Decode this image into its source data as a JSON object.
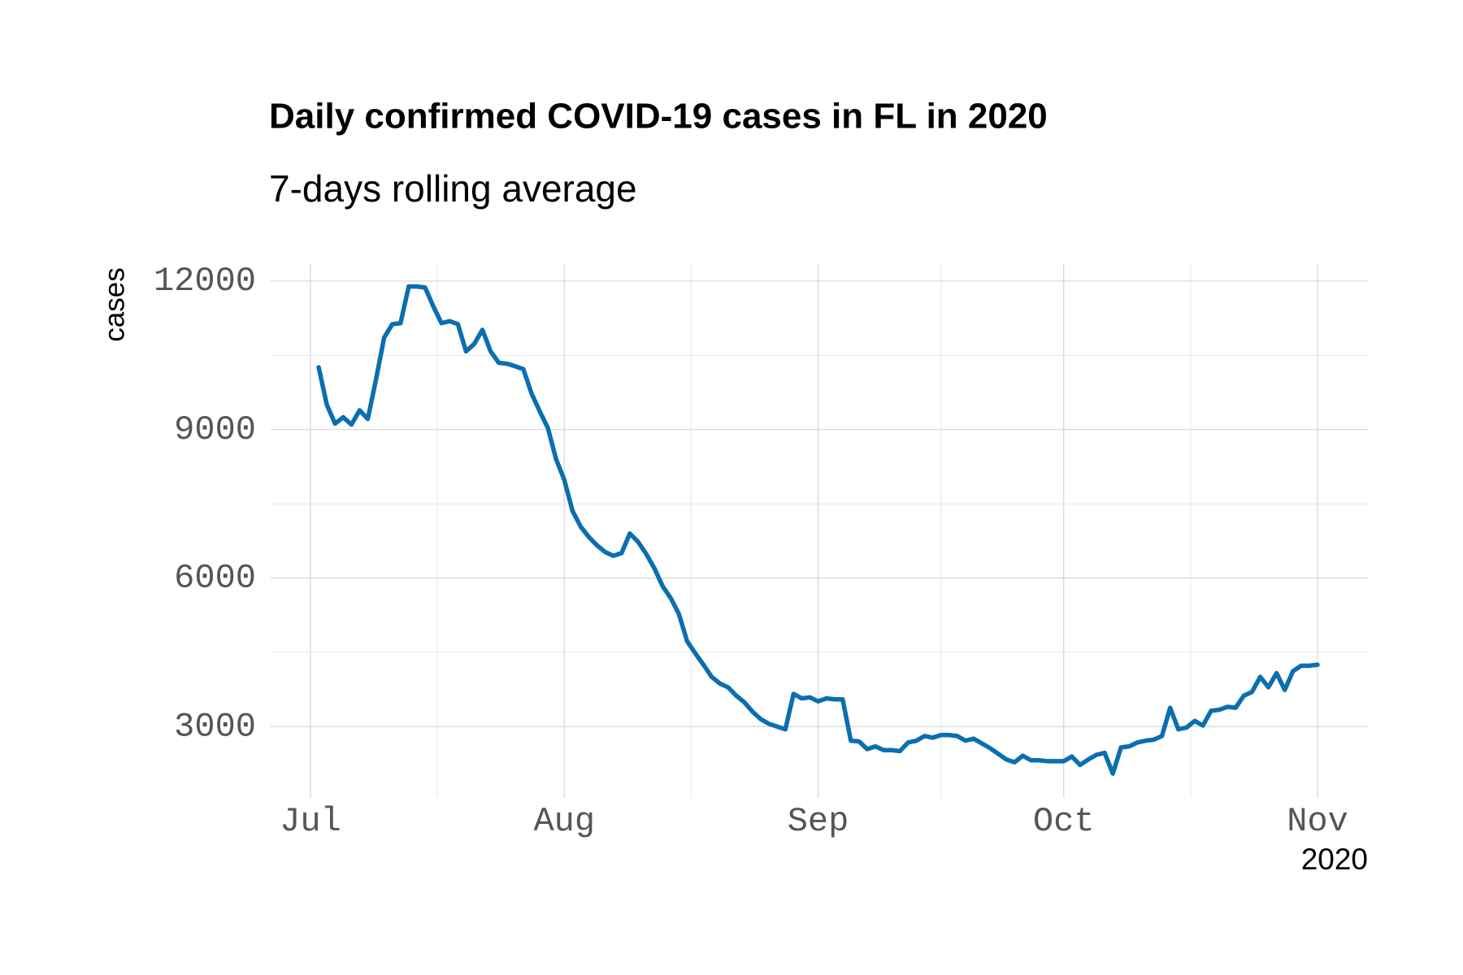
{
  "chart_data": {
    "type": "line",
    "title": "Daily confirmed COVID-19 cases in FL in 2020",
    "subtitle": "7-days rolling average",
    "y_label": "cases",
    "x_label": "2020",
    "categories": [
      "Jul",
      null,
      null,
      null,
      null,
      null,
      null,
      null,
      null,
      null,
      null,
      null,
      null,
      null,
      null,
      null,
      null,
      null,
      null,
      null,
      null,
      null,
      null,
      null,
      null,
      null,
      null,
      null,
      null,
      null,
      null,
      "Aug",
      null,
      null,
      null,
      null,
      null,
      null,
      null,
      null,
      null,
      null,
      null,
      null,
      null,
      null,
      null,
      null,
      null,
      null,
      null,
      null,
      null,
      null,
      null,
      null,
      null,
      null,
      null,
      null,
      null,
      null,
      "Sep",
      null,
      null,
      null,
      null,
      null,
      null,
      null,
      null,
      null,
      null,
      null,
      null,
      null,
      null,
      null,
      null,
      null,
      null,
      null,
      null,
      null,
      null,
      null,
      null,
      null,
      null,
      null,
      null,
      null,
      "Oct",
      null,
      null,
      null,
      null,
      null,
      null,
      null,
      null,
      null,
      null,
      null,
      null,
      null,
      null,
      null,
      null,
      null,
      null,
      null,
      null,
      null,
      null,
      null,
      null,
      null,
      null,
      null,
      null,
      null,
      null,
      "Nov"
    ],
    "values": [
      null,
      10258,
      9500,
      9120,
      9250,
      9100,
      9390,
      9215,
      10010,
      10860,
      11130,
      11150,
      11890,
      11890,
      11870,
      11490,
      11150,
      11190,
      11130,
      10580,
      10730,
      11015,
      10580,
      10350,
      10330,
      10280,
      10220,
      9730,
      9370,
      9030,
      8400,
      7985,
      7360,
      7040,
      6830,
      6660,
      6525,
      6450,
      6505,
      6900,
      6735,
      6490,
      6200,
      5840,
      5595,
      5275,
      4725,
      4480,
      4250,
      4005,
      3870,
      3795,
      3625,
      3490,
      3300,
      3150,
      3055,
      3000,
      2945,
      3660,
      3570,
      3590,
      3510,
      3570,
      3550,
      3550,
      2715,
      2700,
      2545,
      2600,
      2525,
      2525,
      2505,
      2680,
      2715,
      2810,
      2775,
      2830,
      2830,
      2810,
      2715,
      2755,
      2660,
      2565,
      2450,
      2335,
      2280,
      2410,
      2320,
      2320,
      2300,
      2300,
      2300,
      2395,
      2225,
      2335,
      2430,
      2470,
      2050,
      2580,
      2600,
      2680,
      2715,
      2735,
      2810,
      3380,
      2945,
      2980,
      3115,
      3020,
      3320,
      3340,
      3400,
      3380,
      3625,
      3700,
      4005,
      3795,
      4080,
      3740,
      4120,
      4230,
      4230,
      4250
    ],
    "color": "#0a6fb0",
    "ylim": [
      1560,
      12360
    ],
    "yticks": [
      3000,
      6000,
      9000,
      12000
    ],
    "grid": true
  }
}
